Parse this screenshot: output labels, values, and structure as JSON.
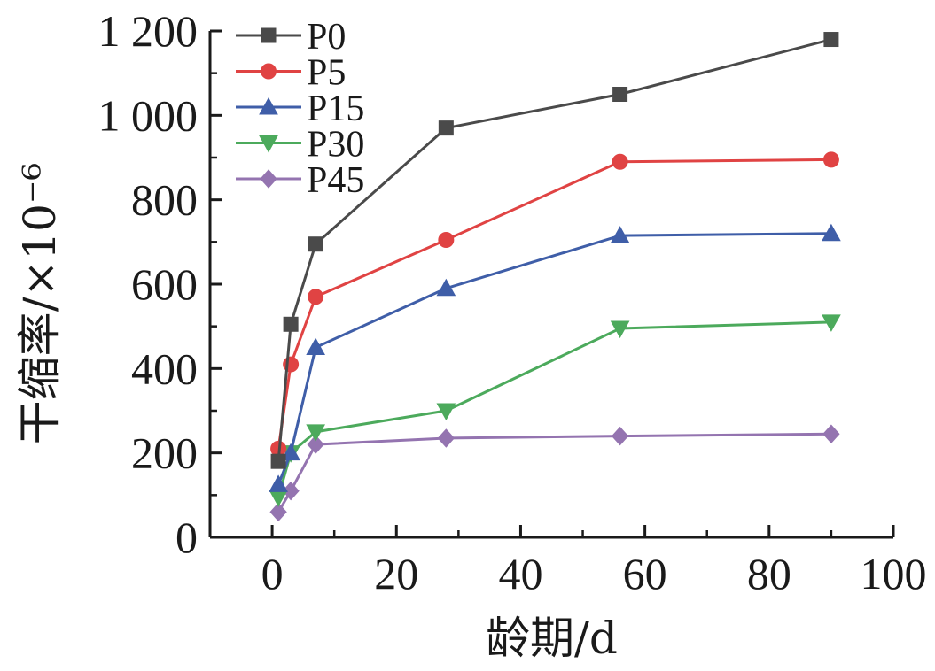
{
  "chart_data": {
    "type": "line",
    "xlabel": "龄期/d",
    "ylabel": "干缩率/×10⁻⁶",
    "xlim": [
      -10,
      100
    ],
    "ylim": [
      0,
      1200
    ],
    "xticks": [
      0,
      20,
      40,
      60,
      80,
      100
    ],
    "yticks": [
      0,
      200,
      400,
      600,
      800,
      1000,
      1200
    ],
    "ytick_labels": [
      "0",
      "200",
      "400",
      "600",
      "800",
      "1 000",
      "1 200"
    ],
    "grid": false,
    "legend_position": "top-left",
    "series": [
      {
        "name": "P0",
        "color": "#4a4a4a",
        "marker": "square",
        "x": [
          1,
          3,
          7,
          28,
          56,
          90
        ],
        "y": [
          180,
          505,
          695,
          970,
          1050,
          1180
        ]
      },
      {
        "name": "P5",
        "color": "#e04343",
        "marker": "circle",
        "x": [
          1,
          3,
          7,
          28,
          56,
          90
        ],
        "y": [
          210,
          410,
          570,
          705,
          890,
          895
        ]
      },
      {
        "name": "P15",
        "color": "#3f5ea8",
        "marker": "triangle-up",
        "x": [
          1,
          3,
          7,
          28,
          56,
          90
        ],
        "y": [
          125,
          200,
          450,
          590,
          715,
          720
        ]
      },
      {
        "name": "P30",
        "color": "#4caa5c",
        "marker": "triangle-down",
        "x": [
          1,
          3,
          7,
          28,
          56,
          90
        ],
        "y": [
          95,
          200,
          250,
          300,
          495,
          510
        ]
      },
      {
        "name": "P45",
        "color": "#9474b0",
        "marker": "diamond",
        "x": [
          1,
          3,
          7,
          28,
          56,
          90
        ],
        "y": [
          60,
          110,
          220,
          235,
          240,
          245
        ]
      }
    ]
  }
}
